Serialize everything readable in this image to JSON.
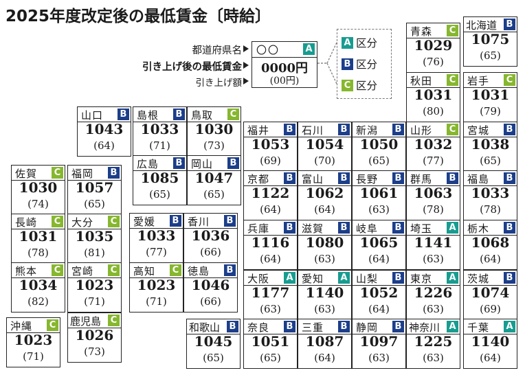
{
  "title": "2025年度改定後の最低賃金〔時給〕",
  "legend": {
    "label_name": "都道府県名",
    "label_wage": "引き上げ後の最低賃金",
    "label_rise": "引き上げ額",
    "example_name": "〇〇",
    "example_grade": "A",
    "example_wage": "0000円",
    "example_rise": "(00円)"
  },
  "grade_key": [
    {
      "grade": "A",
      "label": "区分",
      "color": "#179c90"
    },
    {
      "grade": "B",
      "label": "区分",
      "color": "#1c3e8a"
    },
    {
      "grade": "C",
      "label": "区分",
      "color": "#86b72e"
    }
  ],
  "prefectures": [
    {
      "name": "北海道",
      "grade": "B",
      "wage": "1075",
      "rise": "(65)"
    },
    {
      "name": "青森",
      "grade": "C",
      "wage": "1029",
      "rise": "(76)"
    },
    {
      "name": "秋田",
      "grade": "C",
      "wage": "1031",
      "rise": "(80)"
    },
    {
      "name": "岩手",
      "grade": "C",
      "wage": "1031",
      "rise": "(79)"
    },
    {
      "name": "山形",
      "grade": "C",
      "wage": "1032",
      "rise": "(77)"
    },
    {
      "name": "宮城",
      "grade": "B",
      "wage": "1038",
      "rise": "(65)"
    },
    {
      "name": "福井",
      "grade": "B",
      "wage": "1053",
      "rise": "(69)"
    },
    {
      "name": "石川",
      "grade": "B",
      "wage": "1054",
      "rise": "(70)"
    },
    {
      "name": "新潟",
      "grade": "B",
      "wage": "1050",
      "rise": "(65)"
    },
    {
      "name": "群馬",
      "grade": "B",
      "wage": "1063",
      "rise": "(78)"
    },
    {
      "name": "福島",
      "grade": "B",
      "wage": "1033",
      "rise": "(78)"
    },
    {
      "name": "京都",
      "grade": "B",
      "wage": "1122",
      "rise": "(64)"
    },
    {
      "name": "富山",
      "grade": "B",
      "wage": "1062",
      "rise": "(64)"
    },
    {
      "name": "長野",
      "grade": "B",
      "wage": "1061",
      "rise": "(63)"
    },
    {
      "name": "埼玉",
      "grade": "A",
      "wage": "1141",
      "rise": "(63)"
    },
    {
      "name": "栃木",
      "grade": "B",
      "wage": "1068",
      "rise": "(64)"
    },
    {
      "name": "兵庫",
      "grade": "B",
      "wage": "1116",
      "rise": "(64)"
    },
    {
      "name": "滋賀",
      "grade": "B",
      "wage": "1080",
      "rise": "(63)"
    },
    {
      "name": "岐阜",
      "grade": "B",
      "wage": "1065",
      "rise": "(64)"
    },
    {
      "name": "東京",
      "grade": "A",
      "wage": "1226",
      "rise": "(63)"
    },
    {
      "name": "茨城",
      "grade": "B",
      "wage": "1074",
      "rise": "(69)"
    },
    {
      "name": "大阪",
      "grade": "A",
      "wage": "1177",
      "rise": "(63)"
    },
    {
      "name": "愛知",
      "grade": "A",
      "wage": "1140",
      "rise": "(63)"
    },
    {
      "name": "山梨",
      "grade": "B",
      "wage": "1052",
      "rise": "(64)"
    },
    {
      "name": "神奈川",
      "grade": "A",
      "wage": "1225",
      "rise": "(63)"
    },
    {
      "name": "千葉",
      "grade": "A",
      "wage": "1140",
      "rise": "(64)"
    },
    {
      "name": "和歌山",
      "grade": "B",
      "wage": "1045",
      "rise": "(65)"
    },
    {
      "name": "奈良",
      "grade": "B",
      "wage": "1051",
      "rise": "(65)"
    },
    {
      "name": "三重",
      "grade": "B",
      "wage": "1087",
      "rise": "(64)"
    },
    {
      "name": "静岡",
      "grade": "B",
      "wage": "1097",
      "rise": "(63)"
    },
    {
      "name": "山口",
      "grade": "B",
      "wage": "1043",
      "rise": "(64)"
    },
    {
      "name": "島根",
      "grade": "B",
      "wage": "1033",
      "rise": "(71)"
    },
    {
      "name": "鳥取",
      "grade": "C",
      "wage": "1030",
      "rise": "(73)"
    },
    {
      "name": "広島",
      "grade": "B",
      "wage": "1085",
      "rise": "(65)"
    },
    {
      "name": "岡山",
      "grade": "B",
      "wage": "1047",
      "rise": "(65)"
    },
    {
      "name": "愛媛",
      "grade": "B",
      "wage": "1033",
      "rise": "(77)"
    },
    {
      "name": "香川",
      "grade": "B",
      "wage": "1036",
      "rise": "(66)"
    },
    {
      "name": "高知",
      "grade": "C",
      "wage": "1023",
      "rise": "(71)"
    },
    {
      "name": "徳島",
      "grade": "B",
      "wage": "1046",
      "rise": "(66)"
    },
    {
      "name": "佐賀",
      "grade": "C",
      "wage": "1030",
      "rise": "(74)"
    },
    {
      "name": "福岡",
      "grade": "B",
      "wage": "1057",
      "rise": "(65)"
    },
    {
      "name": "長崎",
      "grade": "C",
      "wage": "1031",
      "rise": "(78)"
    },
    {
      "name": "大分",
      "grade": "C",
      "wage": "1035",
      "rise": "(81)"
    },
    {
      "name": "熊本",
      "grade": "C",
      "wage": "1034",
      "rise": "(82)"
    },
    {
      "name": "宮崎",
      "grade": "C",
      "wage": "1023",
      "rise": "(71)"
    },
    {
      "name": "鹿児島",
      "grade": "C",
      "wage": "1026",
      "rise": "(73)"
    },
    {
      "name": "沖縄",
      "grade": "C",
      "wage": "1023",
      "rise": "(71)"
    }
  ]
}
